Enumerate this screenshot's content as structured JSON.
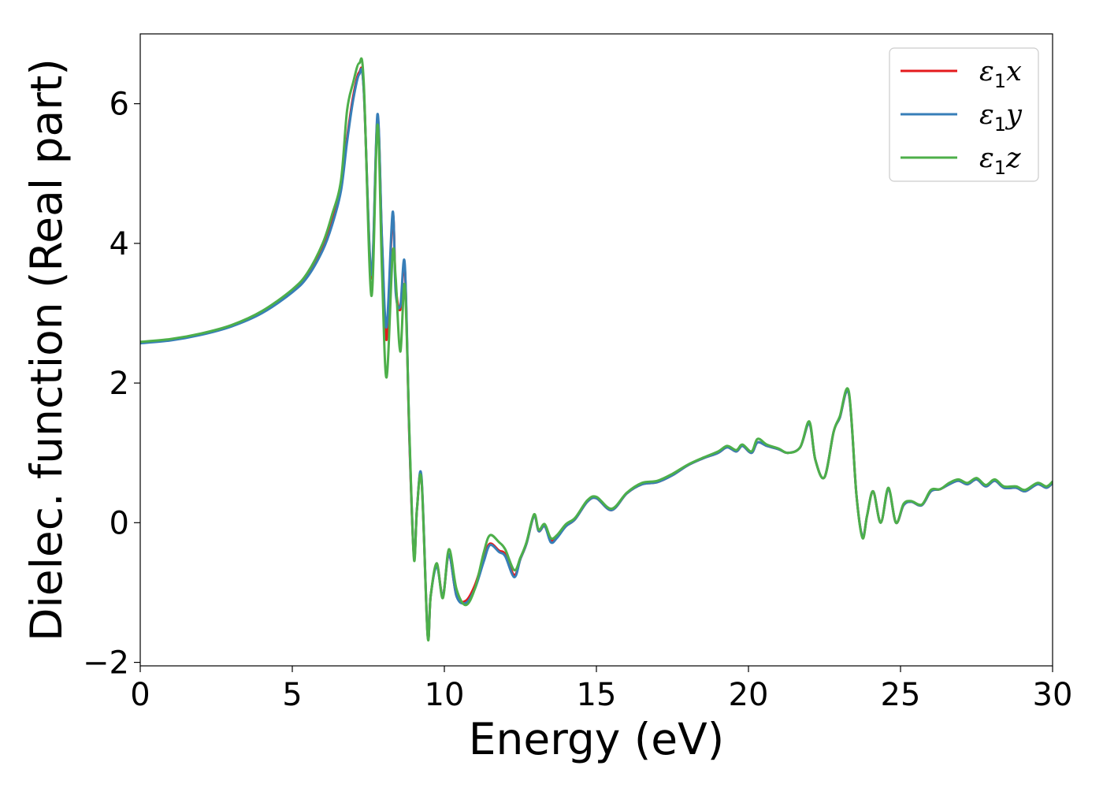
{
  "chart_data": {
    "type": "line",
    "xlabel": "Energy (eV)",
    "ylabel": "Dielec. function (Real part)",
    "xlim": [
      0,
      30
    ],
    "ylim": [
      -2.05,
      7.0
    ],
    "xticks": [
      0,
      5,
      10,
      15,
      20,
      25,
      30
    ],
    "xtick_labels": [
      "0",
      "5",
      "10",
      "15",
      "20",
      "25",
      "30"
    ],
    "yticks": [
      -2,
      0,
      2,
      4,
      6
    ],
    "ytick_labels": [
      "−2",
      "0",
      "2",
      "4",
      "6"
    ],
    "grid": false,
    "legend_position": "top-right",
    "series": [
      {
        "name": "ε1x",
        "legend_base": "ε",
        "legend_sub": "1",
        "legend_var": "x",
        "color": "#e41a1c",
        "x": [
          0,
          1,
          2,
          3,
          4,
          5,
          5.5,
          6,
          6.3,
          6.6,
          6.8,
          7.0,
          7.2,
          7.35,
          7.6,
          7.8,
          7.95,
          8.1,
          8.3,
          8.4,
          8.55,
          8.7,
          8.85,
          9.0,
          9.1,
          9.25,
          9.45,
          9.55,
          9.75,
          9.95,
          10.15,
          10.4,
          10.7,
          11.0,
          11.3,
          11.5,
          11.8,
          12.0,
          12.3,
          12.5,
          12.7,
          12.95,
          13.1,
          13.3,
          13.5,
          13.7,
          14.0,
          14.3,
          14.7,
          15.0,
          15.5,
          16.0,
          16.5,
          17.0,
          17.5,
          18.0,
          18.5,
          19.0,
          19.3,
          19.6,
          19.8,
          20.1,
          20.3,
          20.6,
          21.0,
          21.3,
          21.7,
          22.0,
          22.2,
          22.5,
          22.8,
          23.0,
          23.3,
          23.55,
          23.75,
          23.9,
          24.1,
          24.35,
          24.6,
          24.85,
          25.1,
          25.35,
          25.7,
          26.0,
          26.3,
          26.6,
          26.9,
          27.2,
          27.5,
          27.8,
          28.1,
          28.4,
          28.8,
          29.1,
          29.5,
          29.8,
          30
        ],
        "y": [
          2.58,
          2.62,
          2.7,
          2.82,
          3.02,
          3.32,
          3.55,
          3.95,
          4.3,
          4.8,
          5.5,
          6.1,
          6.45,
          6.2,
          3.5,
          5.8,
          4.0,
          2.62,
          4.4,
          3.4,
          3.05,
          3.65,
          1.2,
          -0.48,
          0.2,
          0.62,
          -1.6,
          -1.05,
          -0.6,
          -1.05,
          -0.45,
          -1.05,
          -1.12,
          -0.9,
          -0.5,
          -0.3,
          -0.4,
          -0.45,
          -0.75,
          -0.52,
          -0.3,
          0.1,
          -0.12,
          -0.05,
          -0.25,
          -0.2,
          -0.05,
          0.05,
          0.3,
          0.35,
          0.18,
          0.42,
          0.55,
          0.58,
          0.68,
          0.82,
          0.92,
          1.0,
          1.08,
          1.02,
          1.1,
          1.0,
          1.15,
          1.1,
          1.05,
          1.0,
          1.08,
          1.42,
          0.9,
          0.65,
          1.3,
          1.5,
          1.85,
          0.4,
          -0.2,
          0.1,
          0.45,
          0.0,
          0.48,
          0.0,
          0.25,
          0.3,
          0.25,
          0.45,
          0.48,
          0.55,
          0.6,
          0.55,
          0.62,
          0.52,
          0.6,
          0.5,
          0.5,
          0.45,
          0.55,
          0.5,
          0.57
        ]
      },
      {
        "name": "ε1y",
        "legend_base": "ε",
        "legend_sub": "1",
        "legend_var": "y",
        "color": "#377eb8",
        "x": [
          0,
          1,
          2,
          3,
          4,
          5,
          5.5,
          6,
          6.3,
          6.6,
          6.8,
          7.0,
          7.2,
          7.35,
          7.6,
          7.8,
          7.95,
          8.1,
          8.3,
          8.4,
          8.55,
          8.7,
          8.85,
          9.0,
          9.1,
          9.25,
          9.45,
          9.55,
          9.75,
          9.95,
          10.15,
          10.4,
          10.7,
          11.0,
          11.3,
          11.5,
          11.8,
          12.0,
          12.3,
          12.5,
          12.7,
          12.95,
          13.1,
          13.3,
          13.5,
          13.7,
          14.0,
          14.3,
          14.7,
          15.0,
          15.5,
          16.0,
          16.5,
          17.0,
          17.5,
          18.0,
          18.5,
          19.0,
          19.3,
          19.6,
          19.8,
          20.1,
          20.3,
          20.6,
          21.0,
          21.3,
          21.7,
          22.0,
          22.2,
          22.5,
          22.8,
          23.0,
          23.3,
          23.55,
          23.75,
          23.9,
          24.1,
          24.35,
          24.6,
          24.85,
          25.1,
          25.35,
          25.7,
          26.0,
          26.3,
          26.6,
          26.9,
          27.2,
          27.5,
          27.8,
          28.1,
          28.4,
          28.8,
          29.1,
          29.5,
          29.8,
          30
        ],
        "y": [
          2.57,
          2.61,
          2.69,
          2.81,
          3.0,
          3.3,
          3.52,
          3.9,
          4.25,
          4.75,
          5.45,
          6.05,
          6.42,
          6.2,
          3.55,
          5.85,
          4.05,
          2.8,
          4.45,
          3.3,
          3.1,
          3.7,
          1.25,
          -0.47,
          0.2,
          0.65,
          -1.6,
          -1.05,
          -0.62,
          -1.05,
          -0.45,
          -1.05,
          -1.15,
          -0.95,
          -0.55,
          -0.32,
          -0.42,
          -0.48,
          -0.78,
          -0.52,
          -0.3,
          0.1,
          -0.12,
          -0.05,
          -0.28,
          -0.22,
          -0.05,
          0.05,
          0.3,
          0.35,
          0.18,
          0.42,
          0.55,
          0.58,
          0.68,
          0.82,
          0.92,
          1.0,
          1.08,
          1.02,
          1.1,
          1.0,
          1.15,
          1.1,
          1.05,
          1.0,
          1.08,
          1.42,
          0.9,
          0.65,
          1.3,
          1.5,
          1.85,
          0.4,
          -0.2,
          0.1,
          0.45,
          0.0,
          0.48,
          0.0,
          0.25,
          0.3,
          0.25,
          0.45,
          0.48,
          0.55,
          0.6,
          0.55,
          0.62,
          0.52,
          0.6,
          0.5,
          0.5,
          0.45,
          0.55,
          0.5,
          0.57
        ]
      },
      {
        "name": "ε1z",
        "legend_base": "ε",
        "legend_sub": "1",
        "legend_var": "z",
        "color": "#4daf4a",
        "x": [
          0,
          1,
          2,
          3,
          4,
          5,
          5.5,
          6,
          6.3,
          6.6,
          6.8,
          7.0,
          7.2,
          7.35,
          7.6,
          7.8,
          7.95,
          8.1,
          8.3,
          8.4,
          8.55,
          8.7,
          8.85,
          9.0,
          9.1,
          9.25,
          9.45,
          9.55,
          9.75,
          9.95,
          10.15,
          10.4,
          10.7,
          11.0,
          11.3,
          11.5,
          11.8,
          12.0,
          12.3,
          12.5,
          12.7,
          12.95,
          13.1,
          13.3,
          13.5,
          13.7,
          14.0,
          14.3,
          14.7,
          15.0,
          15.5,
          16.0,
          16.5,
          17.0,
          17.5,
          18.0,
          18.5,
          19.0,
          19.3,
          19.6,
          19.8,
          20.1,
          20.3,
          20.6,
          21.0,
          21.3,
          21.7,
          22.0,
          22.2,
          22.5,
          22.8,
          23.0,
          23.3,
          23.55,
          23.75,
          23.9,
          24.1,
          24.35,
          24.6,
          24.85,
          25.1,
          25.35,
          25.7,
          26.0,
          26.3,
          26.6,
          26.9,
          27.2,
          27.5,
          27.8,
          28.1,
          28.4,
          28.8,
          29.1,
          29.5,
          29.8,
          30
        ],
        "y": [
          2.59,
          2.63,
          2.71,
          2.83,
          3.03,
          3.34,
          3.58,
          4.0,
          4.4,
          4.9,
          5.9,
          6.3,
          6.58,
          6.3,
          3.25,
          5.7,
          3.6,
          2.08,
          3.85,
          3.5,
          2.45,
          3.4,
          1.3,
          -0.52,
          0.2,
          0.6,
          -1.62,
          -1.05,
          -0.58,
          -1.08,
          -0.38,
          -0.95,
          -1.18,
          -0.95,
          -0.42,
          -0.18,
          -0.28,
          -0.38,
          -0.68,
          -0.5,
          -0.28,
          0.12,
          -0.1,
          -0.02,
          -0.22,
          -0.18,
          -0.02,
          0.07,
          0.32,
          0.37,
          0.2,
          0.43,
          0.57,
          0.6,
          0.7,
          0.83,
          0.93,
          1.02,
          1.1,
          1.04,
          1.12,
          1.02,
          1.2,
          1.12,
          1.06,
          1.0,
          1.08,
          1.45,
          0.9,
          0.65,
          1.3,
          1.52,
          1.88,
          0.4,
          -0.22,
          0.1,
          0.45,
          0.0,
          0.5,
          0.0,
          0.27,
          0.31,
          0.26,
          0.47,
          0.48,
          0.57,
          0.62,
          0.57,
          0.64,
          0.54,
          0.62,
          0.52,
          0.52,
          0.47,
          0.57,
          0.52,
          0.59
        ]
      }
    ]
  }
}
